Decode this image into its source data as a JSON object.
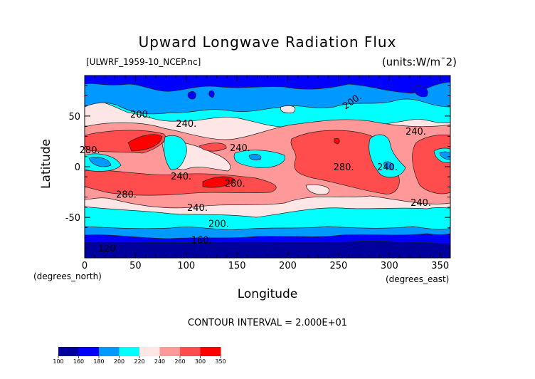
{
  "chart_data": {
    "type": "heatmap",
    "subtype": "filled-contour-map",
    "title": "Upward Longwave Radiation Flux",
    "subtitle": "[ULWRF_1959-10_NCEP.nc]",
    "units": "(units:W/m¯2)",
    "xlabel": "Longitude",
    "ylabel": "Latitude",
    "xunits": "(degrees_east)",
    "yunits": "(degrees_north)",
    "xlim": [
      0,
      360
    ],
    "ylim": [
      -90,
      90
    ],
    "xticks": [
      0,
      50,
      100,
      150,
      200,
      250,
      300,
      350
    ],
    "yticks": [
      50,
      0,
      -50
    ],
    "contour_interval_text": "CONTOUR INTERVAL = 2.000E+01",
    "colorbar": {
      "levels": [
        100,
        160,
        180,
        200,
        220,
        240,
        260,
        300,
        350
      ],
      "colors": [
        "#00009c",
        "#0000ff",
        "#0099ff",
        "#00ffff",
        "#ffe6e6",
        "#ff9999",
        "#ff4d4d",
        "#ff0000"
      ]
    },
    "contour_labels": [
      {
        "text": "200.",
        "lon": 55,
        "lat": 52
      },
      {
        "text": "240.",
        "lon": 100,
        "lat": 43
      },
      {
        "text": "280.",
        "lon": 5,
        "lat": 17
      },
      {
        "text": "240.",
        "lon": 153,
        "lat": 19
      },
      {
        "text": "280.",
        "lon": 255,
        "lat": 0
      },
      {
        "text": "240.",
        "lon": 95,
        "lat": -9
      },
      {
        "text": "280.",
        "lon": 148,
        "lat": -16
      },
      {
        "text": "280.",
        "lon": 41,
        "lat": -27
      },
      {
        "text": "240.",
        "lon": 111,
        "lat": -40
      },
      {
        "text": "200.",
        "lon": 132,
        "lat": -56
      },
      {
        "text": "160.",
        "lon": 115,
        "lat": -72
      },
      {
        "text": "120",
        "lon": 22,
        "lat": -80
      },
      {
        "text": "200.",
        "lon": 263,
        "lat": 65
      },
      {
        "text": "240.",
        "lon": 326,
        "lat": 35
      },
      {
        "text": "240.",
        "lon": 331,
        "lat": -35
      },
      {
        "text": "240.",
        "lon": 298,
        "lat": 0
      }
    ]
  }
}
